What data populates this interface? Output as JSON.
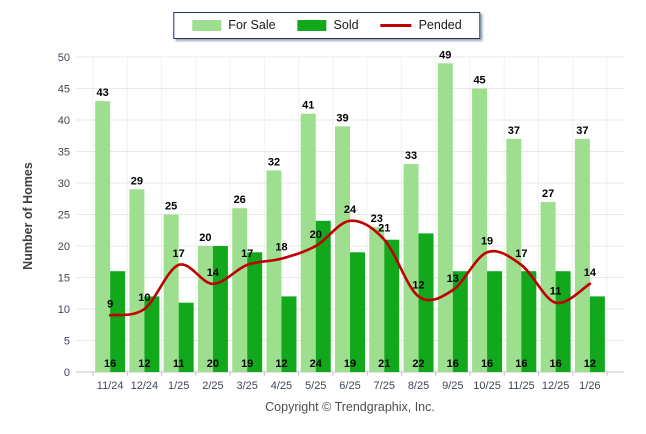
{
  "legend": {
    "items": [
      {
        "label": "For Sale",
        "color": "#9EDF8F",
        "type": "bar"
      },
      {
        "label": "Sold",
        "color": "#12A81C",
        "type": "bar"
      },
      {
        "label": "Pended",
        "color": "#C00000",
        "type": "line"
      }
    ]
  },
  "copyright": "Copyright © Trendgraphix, Inc.",
  "chart_data": {
    "type": "bar",
    "title": "",
    "xlabel": "",
    "ylabel": "Number of Homes",
    "ylim": [
      0,
      50
    ],
    "ytick_step": 5,
    "grid": true,
    "legend_position": "top",
    "categories": [
      "11/24",
      "12/24",
      "1/25",
      "2/25",
      "3/25",
      "4/25",
      "5/25",
      "6/25",
      "7/25",
      "8/25",
      "9/25",
      "10/25",
      "11/25",
      "12/25",
      "1/26"
    ],
    "series": [
      {
        "name": "For Sale",
        "type": "bar",
        "color": "#9EDF8F",
        "values": [
          43,
          29,
          25,
          20,
          26,
          32,
          41,
          39,
          23,
          33,
          49,
          45,
          37,
          27,
          37
        ]
      },
      {
        "name": "Sold",
        "type": "bar",
        "color": "#12A81C",
        "values": [
          16,
          12,
          11,
          20,
          19,
          12,
          24,
          19,
          21,
          22,
          16,
          16,
          16,
          16,
          12
        ]
      },
      {
        "name": "Pended",
        "type": "line",
        "color": "#C00000",
        "values": [
          9,
          10,
          17,
          14,
          17,
          18,
          20,
          24,
          21,
          12,
          13,
          19,
          17,
          11,
          14
        ]
      }
    ]
  },
  "colors": {
    "h_gridline": "#E8E8E8",
    "v_gridline": "#F2F2F2",
    "axis": "#C6C6C6",
    "tick_label": "#3E4656",
    "value_label": "#000000",
    "legend_border": "#17375E"
  }
}
